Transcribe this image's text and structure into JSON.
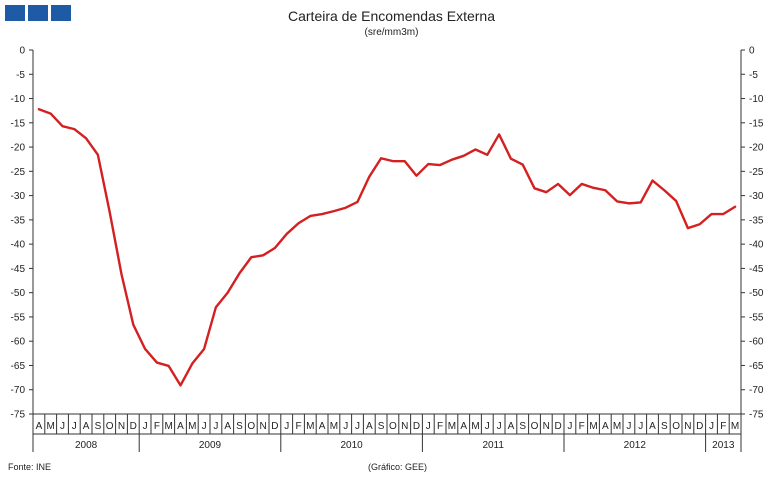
{
  "header": {
    "logo_colors": [
      "#1f5aa6",
      "#1f5aa6",
      "#1f5aa6"
    ]
  },
  "footer": {
    "source": "Fonte: INE",
    "credit": "(Gráfico: GEE)"
  },
  "chart_data": {
    "type": "line",
    "title": "Carteira de Encomendas  Externa",
    "subtitle": "(sre/mm3m)",
    "ylim": [
      -75,
      0
    ],
    "yticks": [
      0,
      -5,
      -10,
      -15,
      -20,
      -25,
      -30,
      -35,
      -40,
      -45,
      -50,
      -55,
      -60,
      -65,
      -70,
      -75
    ],
    "grid": false,
    "line_color": "#d42020",
    "x": [
      "2008-04",
      "2008-05",
      "2008-06",
      "2008-07",
      "2008-08",
      "2008-09",
      "2008-10",
      "2008-11",
      "2008-12",
      "2009-01",
      "2009-02",
      "2009-03",
      "2009-04",
      "2009-05",
      "2009-06",
      "2009-07",
      "2009-08",
      "2009-09",
      "2009-10",
      "2009-11",
      "2009-12",
      "2010-01",
      "2010-02",
      "2010-03",
      "2010-04",
      "2010-05",
      "2010-06",
      "2010-07",
      "2010-08",
      "2010-09",
      "2010-10",
      "2010-11",
      "2010-12",
      "2011-01",
      "2011-02",
      "2011-03",
      "2011-04",
      "2011-05",
      "2011-06",
      "2011-07",
      "2011-08",
      "2011-09",
      "2011-10",
      "2011-11",
      "2011-12",
      "2012-01",
      "2012-02",
      "2012-03",
      "2012-04",
      "2012-05",
      "2012-06",
      "2012-07",
      "2012-08",
      "2012-09",
      "2012-10",
      "2012-11",
      "2012-12",
      "2013-01",
      "2013-02",
      "2013-03"
    ],
    "month_labels": [
      "A",
      "M",
      "J",
      "J",
      "A",
      "S",
      "O",
      "N",
      "D",
      "J",
      "F",
      "M",
      "A",
      "M",
      "J",
      "J",
      "A",
      "S",
      "O",
      "N",
      "D",
      "J",
      "F",
      "M",
      "A",
      "M",
      "J",
      "J",
      "A",
      "S",
      "O",
      "N",
      "D",
      "J",
      "F",
      "M",
      "A",
      "M",
      "J",
      "J",
      "A",
      "S",
      "O",
      "N",
      "D",
      "J",
      "F",
      "M",
      "A",
      "M",
      "J",
      "J",
      "A",
      "S",
      "O",
      "N",
      "D",
      "J",
      "F",
      "M"
    ],
    "years": [
      {
        "label": "2008",
        "start": 0,
        "count": 9
      },
      {
        "label": "2009",
        "start": 9,
        "count": 12
      },
      {
        "label": "2010",
        "start": 21,
        "count": 12
      },
      {
        "label": "2011",
        "start": 33,
        "count": 12
      },
      {
        "label": "2012",
        "start": 45,
        "count": 12
      },
      {
        "label": "2013",
        "start": 57,
        "count": 3
      }
    ],
    "series": [
      {
        "values": [
          -12.2,
          -13.1,
          -15.7,
          -16.3,
          -18.2,
          -21.6,
          -33.4,
          -46.2,
          -56.6,
          -61.6,
          -64.4,
          -65.1,
          -69.1,
          -64.6,
          -61.6,
          -53.0,
          -50.0,
          -46.0,
          -42.7,
          -42.3,
          -40.8,
          -37.9,
          -35.7,
          -34.2,
          -33.8,
          -33.2,
          -32.5,
          -31.3,
          -26.1,
          -22.3,
          -22.9,
          -22.9,
          -25.9,
          -23.5,
          -23.7,
          -22.6,
          -21.8,
          -20.5,
          -21.6,
          -17.4,
          -22.4,
          -23.6,
          -28.5,
          -29.3,
          -27.6,
          -29.9,
          -27.6,
          -28.4,
          -28.9,
          -31.2,
          -31.6,
          -31.4,
          -26.9,
          -28.9,
          -31.1,
          -36.7,
          -35.9,
          -33.8,
          -33.8,
          -32.3
        ]
      }
    ]
  }
}
